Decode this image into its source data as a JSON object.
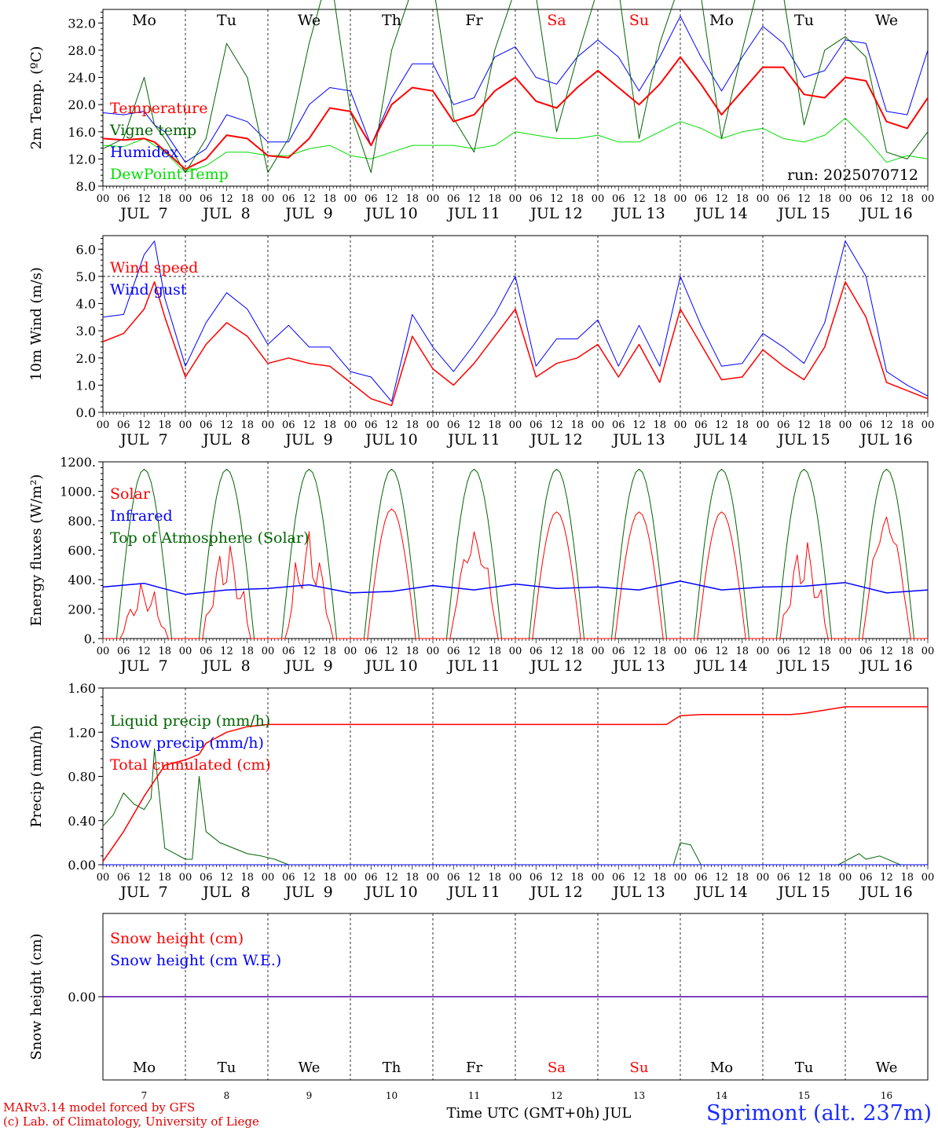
{
  "footer": {
    "credit_line1": "MARv3.14 model forced by GFS",
    "credit_line2": "(c) Lab. of Climatology, University of Liege",
    "time_label": "Time UTC (GMT+0h) JUL",
    "station": "Sprimont (alt. 237m)"
  },
  "run_label": "run: 2025070712",
  "days": [
    {
      "dow": "Mo",
      "date": "JUL  7",
      "num": "7",
      "weekend": false
    },
    {
      "dow": "Tu",
      "date": "JUL  8",
      "num": "8",
      "weekend": false
    },
    {
      "dow": "We",
      "date": "JUL  9",
      "num": "9",
      "weekend": false
    },
    {
      "dow": "Th",
      "date": "JUL 10",
      "num": "10",
      "weekend": false
    },
    {
      "dow": "Fr",
      "date": "JUL 11",
      "num": "11",
      "weekend": false
    },
    {
      "dow": "Sa",
      "date": "JUL 12",
      "num": "12",
      "weekend": true
    },
    {
      "dow": "Su",
      "date": "JUL 13",
      "num": "13",
      "weekend": true
    },
    {
      "dow": "Mo",
      "date": "JUL 14",
      "num": "14",
      "weekend": false
    },
    {
      "dow": "Tu",
      "date": "JUL 15",
      "num": "15",
      "weekend": false
    },
    {
      "dow": "We",
      "date": "JUL 16",
      "num": "16",
      "weekend": false
    }
  ],
  "hour_ticks": [
    "00",
    "06",
    "12",
    "18"
  ],
  "colors": {
    "red": "#ff0000",
    "blue": "#0000ff",
    "green": "#006400",
    "lightgreen": "#00dd00",
    "axis": "#000000",
    "grid": "#000000"
  },
  "chart_data": [
    {
      "type": "line",
      "ylabel": "2m Temp. (ºC)",
      "ylim": [
        8,
        34
      ],
      "yticks": [
        "8.0",
        "12.0",
        "16.0",
        "20.0",
        "24.0",
        "28.0",
        "32.0"
      ],
      "x_hours": [
        0,
        6,
        12,
        15,
        18,
        24,
        30,
        36,
        42,
        48,
        54,
        60,
        66,
        72,
        78,
        84,
        90,
        96,
        102,
        108,
        114,
        120,
        126,
        132,
        138,
        144,
        150,
        156,
        162,
        168,
        174,
        180,
        186,
        192,
        198,
        204,
        210,
        216,
        222,
        228,
        234,
        240
      ],
      "series": [
        {
          "name": "Temperature",
          "color": "#ff0000",
          "width": 2,
          "values": [
            15,
            14.8,
            15,
            14.5,
            13.2,
            10.5,
            12,
            15.5,
            15,
            12.5,
            12.2,
            15,
            19.5,
            19,
            14,
            20,
            22.5,
            22,
            17.5,
            18.5,
            22,
            24,
            20.5,
            19.5,
            22.5,
            25,
            22.5,
            20,
            23,
            27,
            23,
            18.5,
            22,
            25.5,
            25.5,
            21.5,
            21,
            24,
            23.5,
            17.5,
            16.5,
            21
          ]
        },
        {
          "name": "Vigne temp",
          "color": "#006400",
          "width": 1,
          "values": [
            13.5,
            15,
            24,
            17,
            15,
            10,
            15,
            29,
            24,
            10,
            15,
            29,
            40,
            19,
            10,
            28,
            37,
            38,
            18,
            13,
            28,
            37,
            36,
            16,
            27,
            37,
            37,
            15,
            29,
            38,
            36,
            15,
            28,
            40,
            36,
            17,
            28,
            30,
            27,
            13,
            12,
            16
          ]
        },
        {
          "name": "Humidex",
          "color": "#0000ff",
          "width": 1,
          "values": [
            18.8,
            18.5,
            19,
            17,
            16,
            11.5,
            13.5,
            18.5,
            17.5,
            14.5,
            14.5,
            20,
            22.5,
            22,
            14,
            21,
            26,
            26,
            20,
            21,
            27,
            28.5,
            24,
            23,
            27,
            29.5,
            27,
            22,
            27,
            33,
            27,
            22,
            27,
            31.5,
            29,
            24,
            25,
            29.5,
            29,
            19,
            18.5,
            28
          ]
        },
        {
          "name": "DewPoint Temp",
          "color": "#00dd00",
          "width": 1,
          "values": [
            14,
            13.8,
            15,
            14,
            13,
            10,
            11,
            13,
            13,
            12.5,
            12.5,
            13.5,
            14,
            12.5,
            12,
            13,
            14,
            14,
            14,
            13.5,
            14,
            16,
            15.5,
            15,
            15,
            15.5,
            14.5,
            14.5,
            16,
            17.5,
            16.5,
            15,
            16,
            16.5,
            15,
            14.5,
            15.5,
            18,
            15,
            11.5,
            12.5,
            12
          ]
        }
      ]
    },
    {
      "type": "line",
      "ylabel": "10m Wind (m/s)",
      "ylim": [
        0,
        6.5
      ],
      "yticks": [
        "0.0",
        "1.0",
        "2.0",
        "3.0",
        "4.0",
        "5.0",
        "6.0"
      ],
      "ref_line": 5,
      "x_hours": [
        0,
        6,
        12,
        15,
        18,
        24,
        30,
        36,
        42,
        48,
        54,
        60,
        66,
        72,
        78,
        84,
        90,
        96,
        102,
        108,
        114,
        120,
        126,
        132,
        138,
        144,
        150,
        156,
        162,
        168,
        174,
        180,
        186,
        192,
        198,
        204,
        210,
        216,
        222,
        228,
        234,
        240
      ],
      "series": [
        {
          "name": "Wind speed",
          "color": "#ff0000",
          "width": 1.5,
          "values": [
            2.6,
            2.9,
            3.8,
            4.8,
            3.5,
            1.3,
            2.5,
            3.3,
            2.8,
            1.8,
            2,
            1.8,
            1.7,
            1.1,
            0.5,
            0.25,
            2.8,
            1.6,
            1.0,
            1.8,
            2.8,
            3.8,
            1.3,
            1.8,
            2.0,
            2.5,
            1.3,
            2.5,
            1.1,
            3.8,
            2.5,
            1.2,
            1.3,
            2.3,
            1.7,
            1.2,
            2.4,
            4.8,
            3.5,
            1.1,
            0.8,
            0.5
          ]
        },
        {
          "name": "Wind gust",
          "color": "#0000ff",
          "width": 1,
          "values": [
            3.5,
            3.6,
            5.8,
            6.3,
            4.2,
            1.7,
            3.3,
            4.4,
            3.8,
            2.5,
            3.2,
            2.4,
            2.4,
            1.5,
            1.3,
            0.4,
            3.6,
            2.4,
            1.5,
            2.5,
            3.6,
            5.0,
            1.7,
            2.7,
            2.7,
            3.4,
            1.7,
            3.2,
            1.7,
            5.0,
            3.2,
            1.7,
            1.8,
            2.9,
            2.4,
            1.8,
            3.3,
            6.3,
            5.0,
            1.5,
            1.0,
            0.6
          ]
        }
      ]
    },
    {
      "type": "line",
      "ylabel": "Energy fluxes (W/m²)",
      "ylim": [
        0,
        1200
      ],
      "yticks": [
        "0.",
        "200.",
        "400.",
        "600.",
        "800.",
        "1000.",
        "1200."
      ],
      "series": [
        {
          "name": "Solar",
          "color": "#ff0000",
          "width": 1,
          "day_peaks": [
            420,
            760,
            830,
            880,
            770,
            860,
            860,
            860,
            780,
            860
          ],
          "day_noise": [
            1,
            1,
            1,
            0,
            0.5,
            0,
            0,
            0,
            1,
            0.3
          ]
        },
        {
          "name": "Infrared",
          "color": "#0000ff",
          "width": 1.5,
          "x_hours": [
            0,
            12,
            24,
            36,
            48,
            60,
            72,
            84,
            96,
            108,
            120,
            132,
            144,
            156,
            168,
            180,
            192,
            204,
            216,
            228,
            240
          ],
          "values": [
            350,
            375,
            300,
            330,
            340,
            365,
            310,
            320,
            360,
            330,
            370,
            340,
            350,
            330,
            390,
            330,
            350,
            355,
            380,
            310,
            330
          ]
        },
        {
          "name": "Top of Atmosphere (Solar)",
          "color": "#006400",
          "width": 1,
          "peak": 1150
        }
      ]
    },
    {
      "type": "line",
      "ylabel": "Precip (mm/h)",
      "ylim": [
        0,
        1.6
      ],
      "yticks": [
        "0.00",
        "0.40",
        "0.80",
        "1.20",
        "1.60"
      ],
      "series": [
        {
          "name": "Liquid precip (mm/h)",
          "color": "#006400",
          "width": 1,
          "x_hours": [
            0,
            3,
            6,
            9,
            12,
            14,
            15,
            18,
            21,
            24,
            26,
            28,
            30,
            34,
            38,
            42,
            46,
            50,
            54,
            60,
            72,
            114,
            166,
            168,
            171,
            174,
            200,
            214,
            220,
            222,
            226,
            232,
            240
          ],
          "values": [
            0.35,
            0.45,
            0.65,
            0.55,
            0.5,
            0.6,
            1.05,
            0.15,
            0.1,
            0.05,
            0.05,
            0.8,
            0.3,
            0.2,
            0.15,
            0.1,
            0.08,
            0.05,
            0,
            0,
            0,
            0,
            0,
            0.2,
            0.18,
            0,
            0,
            0,
            0.1,
            0.05,
            0.08,
            0,
            0
          ]
        },
        {
          "name": "Snow precip (mm/h)",
          "color": "#0000ff",
          "width": 1,
          "x_hours": [
            0,
            240
          ],
          "values": [
            0,
            0
          ]
        },
        {
          "name": "Total cumulated (cm)",
          "color": "#ff0000",
          "width": 1.5,
          "x_hours": [
            0,
            6,
            12,
            18,
            24,
            28,
            30,
            36,
            42,
            48,
            54,
            60,
            72,
            100,
            120,
            150,
            164,
            168,
            174,
            192,
            200,
            204,
            210,
            216,
            222,
            232,
            240
          ],
          "values": [
            0.03,
            0.3,
            0.62,
            0.9,
            0.95,
            1.0,
            1.1,
            1.2,
            1.25,
            1.27,
            1.27,
            1.27,
            1.27,
            1.27,
            1.27,
            1.27,
            1.27,
            1.35,
            1.36,
            1.36,
            1.36,
            1.37,
            1.4,
            1.43,
            1.43,
            1.43,
            1.43
          ]
        }
      ]
    },
    {
      "type": "line",
      "ylabel": "Snow height (cm)",
      "ylim": [
        -1,
        1
      ],
      "yticks": [
        "0.00"
      ],
      "series": [
        {
          "name": "Snow height (cm)",
          "color": "#ff0000",
          "width": 1.5,
          "x_hours": [
            0,
            240
          ],
          "values": [
            0,
            0
          ]
        },
        {
          "name": "Snow height (cm W.E.)",
          "color": "#0000ff",
          "width": 1,
          "x_hours": [
            0,
            240
          ],
          "values": [
            0,
            0
          ]
        }
      ]
    }
  ]
}
